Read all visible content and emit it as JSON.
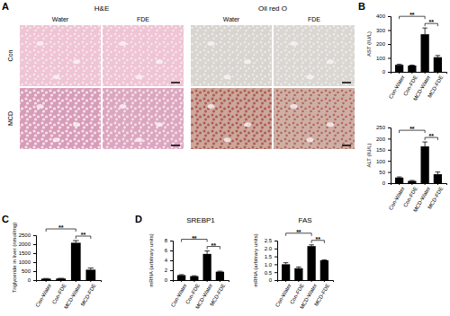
{
  "panel_labels": [
    "A",
    "B",
    "C",
    "D"
  ],
  "image_panel": {
    "stains": [
      "H&E",
      "Oil red O"
    ],
    "treatments": [
      "Water",
      "FDE"
    ],
    "diets": [
      "Con",
      "MCD"
    ]
  },
  "chart_data": [
    {
      "type": "bar",
      "y_label": "AST (IU/L)",
      "categories": [
        "Con-Water",
        "Con-FDE",
        "MCD-Water",
        "MCD-FDE"
      ],
      "values": [
        50,
        45,
        270,
        105
      ],
      "errors": [
        4,
        3,
        45,
        12
      ],
      "color": "#000000",
      "ylim": [
        0,
        400
      ],
      "yticks": [
        0,
        100,
        200,
        300,
        400
      ],
      "annotations": [
        {
          "text": "**",
          "from": "Con-Water",
          "to": "MCD-Water"
        },
        {
          "text": "**",
          "from": "MCD-Water",
          "to": "MCD-FDE"
        }
      ]
    },
    {
      "type": "bar",
      "y_label": "ALT (IU/L)",
      "categories": [
        "Con-Water",
        "Con-FDE",
        "MCD-Water",
        "MCD-FDE"
      ],
      "values": [
        25,
        10,
        165,
        40
      ],
      "errors": [
        3,
        2,
        20,
        10
      ],
      "color": "#000000",
      "ylim": [
        0,
        250
      ],
      "yticks": [
        0,
        50,
        100,
        150,
        200,
        250
      ],
      "annotations": [
        {
          "text": "**",
          "from": "Con-Water",
          "to": "MCD-Water"
        },
        {
          "text": "**",
          "from": "MCD-Water",
          "to": "MCD-FDE"
        }
      ]
    },
    {
      "type": "bar",
      "y_label": "Triglyceride in liver (nmol/mg)",
      "categories": [
        "Con-Water",
        "Con-FDE",
        "MCD-Water",
        "MCD-FDE"
      ],
      "values": [
        80,
        90,
        2080,
        580
      ],
      "errors": [
        10,
        10,
        120,
        90
      ],
      "color": "#000000",
      "ylim": [
        0,
        2500
      ],
      "yticks": [
        0,
        500,
        1000,
        1500,
        2000,
        2500
      ],
      "annotations": [
        {
          "text": "**",
          "from": "Con-Water",
          "to": "MCD-Water"
        },
        {
          "text": "**",
          "from": "MCD-Water",
          "to": "MCD-FDE"
        }
      ]
    },
    {
      "type": "bar",
      "title": "SREBP1",
      "y_label": "mRNA (arbitrary units)",
      "categories": [
        "Con-Water",
        "Con-FDE",
        "MCD-Water",
        "MCD-FDE"
      ],
      "values": [
        1.0,
        0.8,
        5.3,
        1.7
      ],
      "errors": [
        0.1,
        0.08,
        0.6,
        0.1
      ],
      "color": "#000000",
      "ylim": [
        0,
        8
      ],
      "yticks": [
        0,
        2,
        4,
        6,
        8
      ],
      "annotations": [
        {
          "text": "**",
          "from": "Con-Water",
          "to": "MCD-Water"
        },
        {
          "text": "**",
          "from": "MCD-Water",
          "to": "MCD-FDE"
        }
      ]
    },
    {
      "type": "bar",
      "title": "FAS",
      "y_label": "mRNA (arbitrary units)",
      "categories": [
        "Con-Water",
        "Con-FDE",
        "MCD-Water",
        "MCD-FDE"
      ],
      "values": [
        1.0,
        0.75,
        2.15,
        1.25
      ],
      "errors": [
        0.1,
        0.08,
        0.08,
        0.03
      ],
      "color": "#000000",
      "ylim": [
        0,
        2.5
      ],
      "yticks": [
        0,
        0.5,
        {
          "value": 1,
          "label": "1.0"
        },
        1.5,
        {
          "value": 2,
          "label": "2.0"
        },
        2.5
      ],
      "annotations": [
        {
          "text": "**",
          "from": "Con-Water",
          "to": "MCD-Water"
        },
        {
          "text": "**",
          "from": "MCD-Water",
          "to": "MCD-FDE"
        }
      ]
    }
  ]
}
